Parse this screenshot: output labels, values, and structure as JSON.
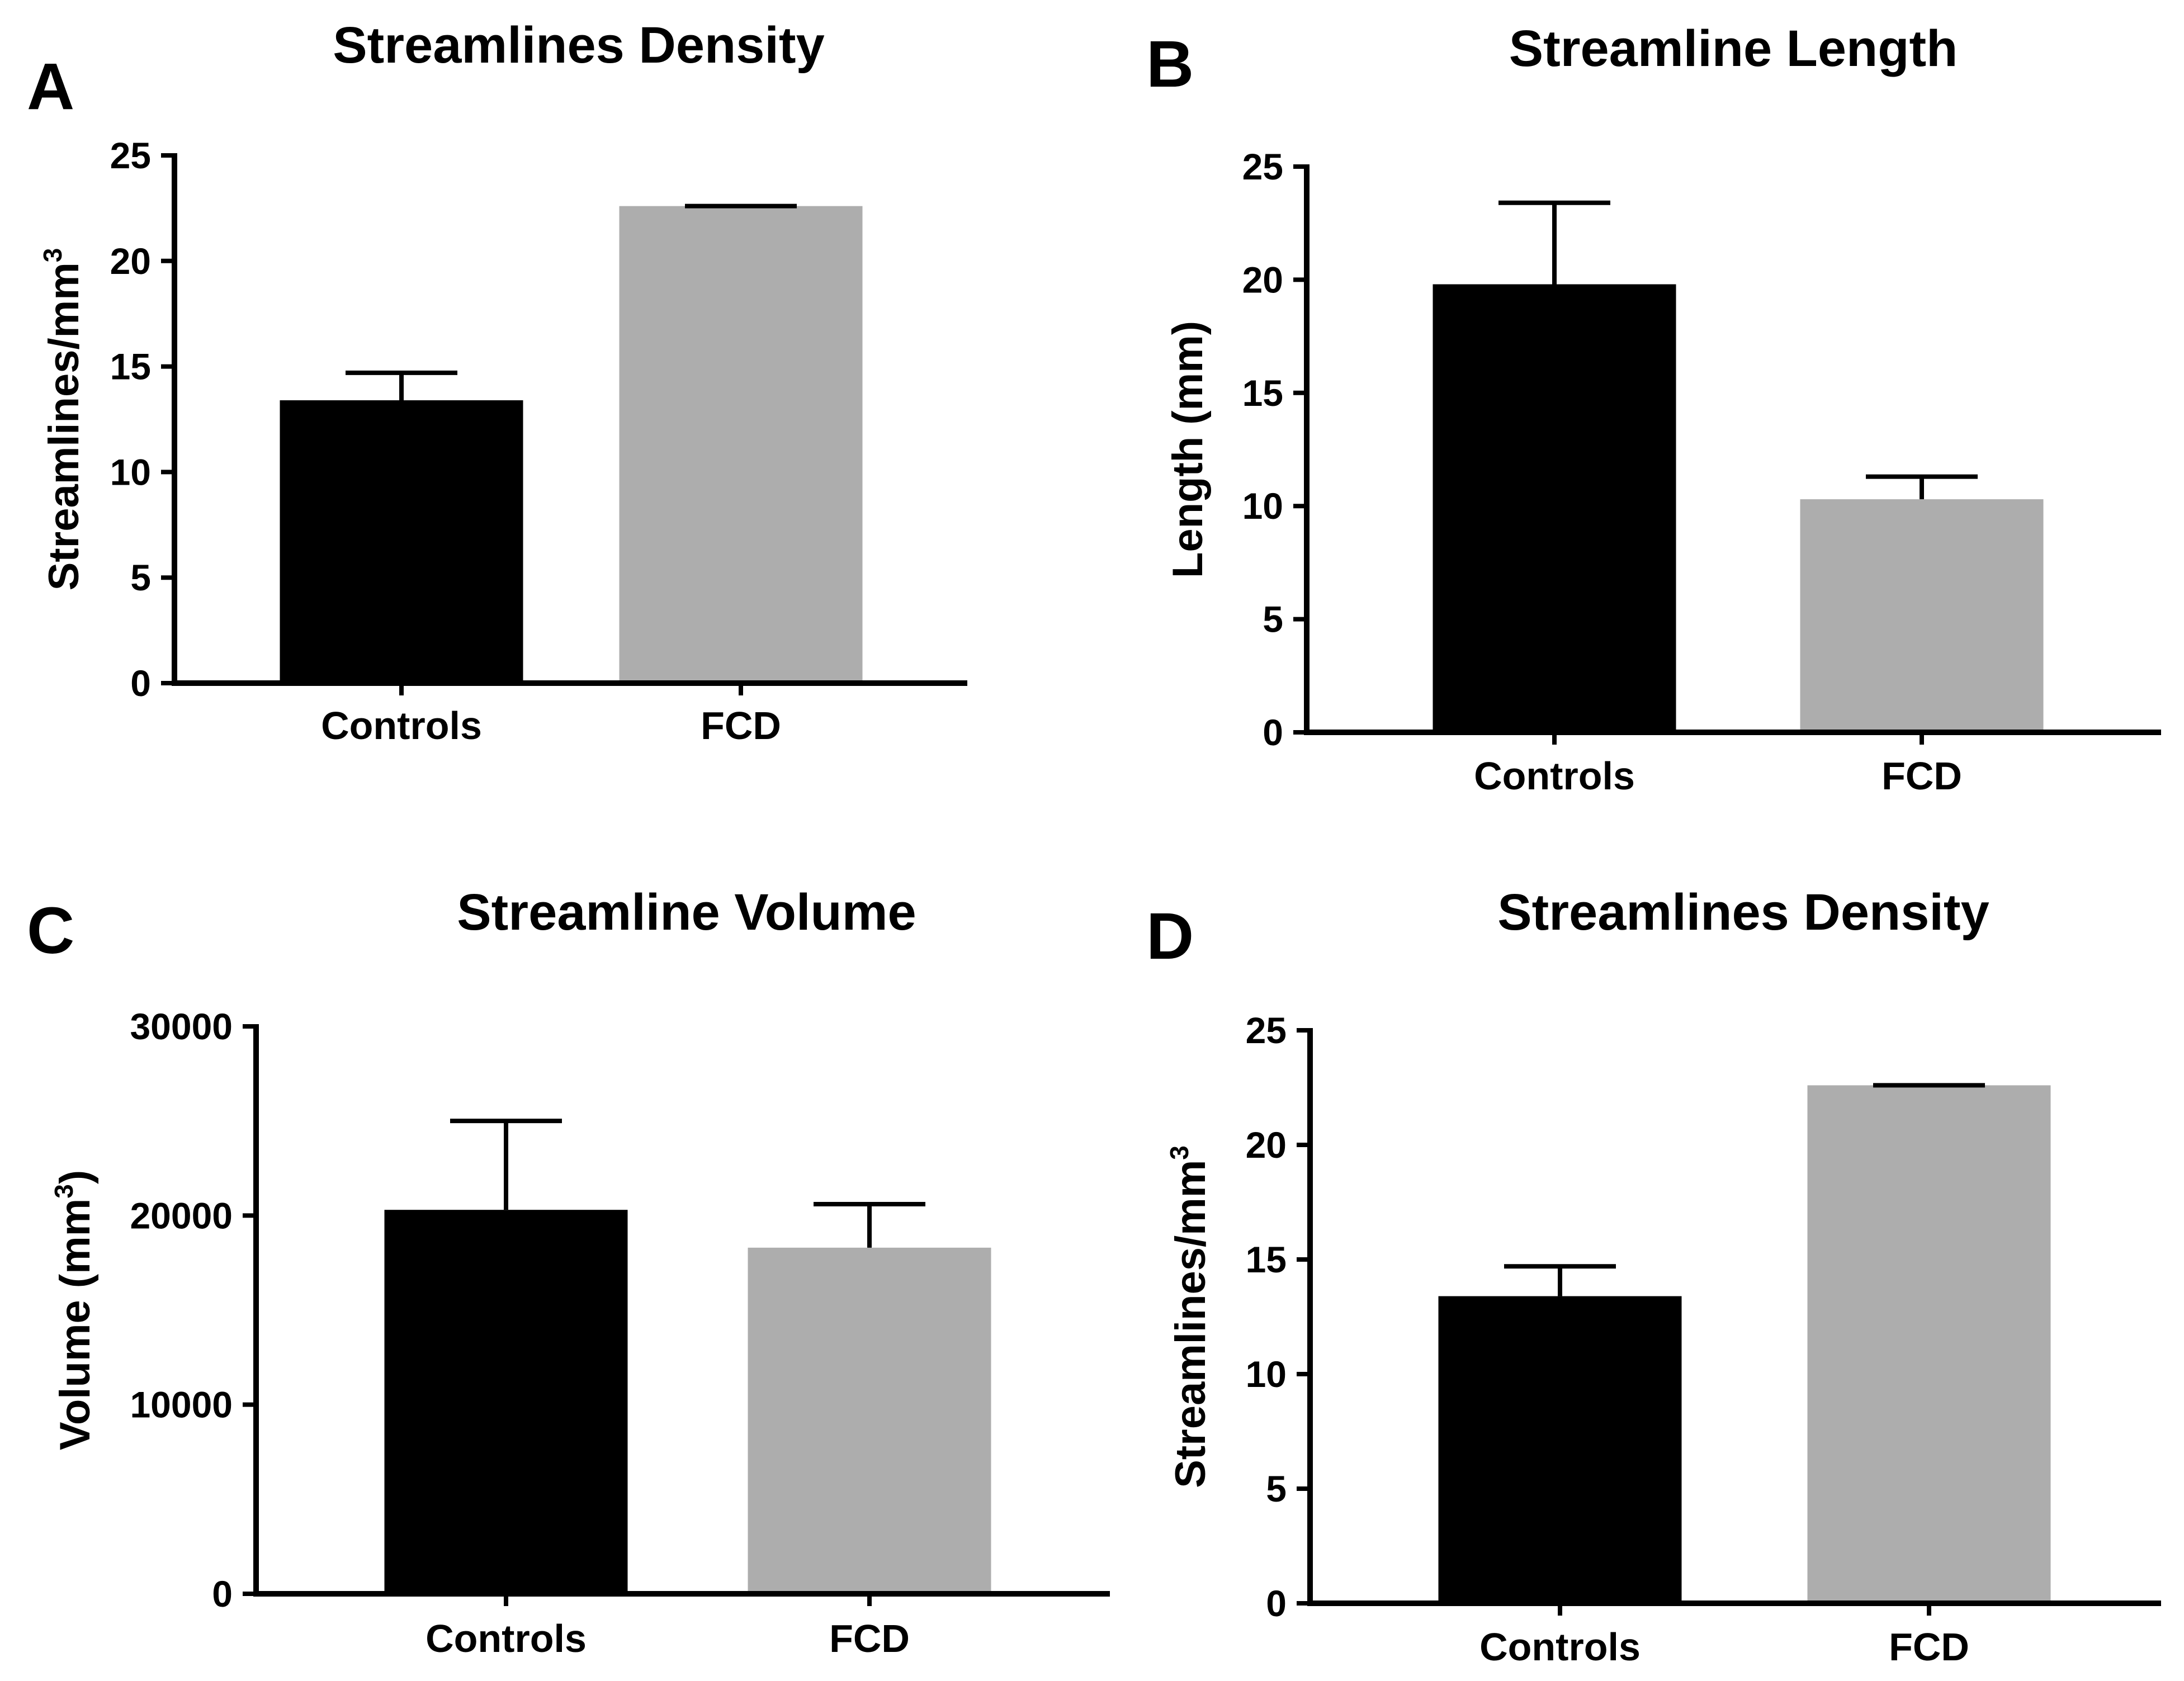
{
  "figure": {
    "colors": {
      "axis": "#000000",
      "text": "#000000",
      "background": "#ffffff"
    }
  },
  "chart_data": [
    {
      "panel": "A",
      "type": "bar",
      "title": "Streamlines Density",
      "ylabel": "Streamlines/mm",
      "ylabel_sup": "3",
      "xlabel": "",
      "categories": [
        "Controls",
        "FCD"
      ],
      "values": [
        13.4,
        22.6
      ],
      "error_upper": [
        14.7,
        22.6
      ],
      "colors": [
        "#000000",
        "#adadad"
      ],
      "ylim": [
        0,
        25
      ],
      "yticks": [
        0,
        5,
        10,
        15,
        20,
        25
      ],
      "ytick_labels": [
        "0",
        "5",
        "10",
        "15",
        "20",
        "25"
      ],
      "grid": false,
      "legend": "none"
    },
    {
      "panel": "B",
      "type": "bar",
      "title": "Streamline Length",
      "ylabel": "Length (mm)",
      "ylabel_sup": "",
      "xlabel": "",
      "categories": [
        "Controls",
        "FCD"
      ],
      "values": [
        19.8,
        10.3
      ],
      "error_upper": [
        23.4,
        11.3
      ],
      "colors": [
        "#000000",
        "#adadad"
      ],
      "ylim": [
        0,
        25
      ],
      "yticks": [
        0,
        5,
        10,
        15,
        20,
        25
      ],
      "ytick_labels": [
        "0",
        "5",
        "10",
        "15",
        "20",
        "25"
      ],
      "grid": false,
      "legend": "none"
    },
    {
      "panel": "C",
      "type": "bar",
      "title": "Streamline Volume",
      "ylabel": "Volume (mm",
      "ylabel_sup": "3",
      "ylabel_suffix": ")",
      "xlabel": "",
      "categories": [
        "Controls",
        "FCD"
      ],
      "values": [
        20300,
        18300
      ],
      "error_upper": [
        25000,
        20600
      ],
      "colors": [
        "#000000",
        "#adadad"
      ],
      "ylim": [
        0,
        30000
      ],
      "yticks": [
        0,
        10000,
        20000,
        30000
      ],
      "ytick_labels": [
        "0",
        "10000",
        "20000",
        "30000"
      ],
      "grid": false,
      "legend": "none"
    },
    {
      "panel": "D",
      "type": "bar",
      "title": "Streamlines Density",
      "ylabel": "Streamlines/mm",
      "ylabel_sup": "3",
      "xlabel": "",
      "categories": [
        "Controls",
        "FCD"
      ],
      "values": [
        13.4,
        22.6
      ],
      "error_upper": [
        14.7,
        22.6
      ],
      "colors": [
        "#000000",
        "#adadad"
      ],
      "ylim": [
        0,
        25
      ],
      "yticks": [
        0,
        5,
        10,
        15,
        20,
        25
      ],
      "ytick_labels": [
        "0",
        "5",
        "10",
        "15",
        "20",
        "25"
      ],
      "grid": false,
      "legend": "none"
    }
  ]
}
